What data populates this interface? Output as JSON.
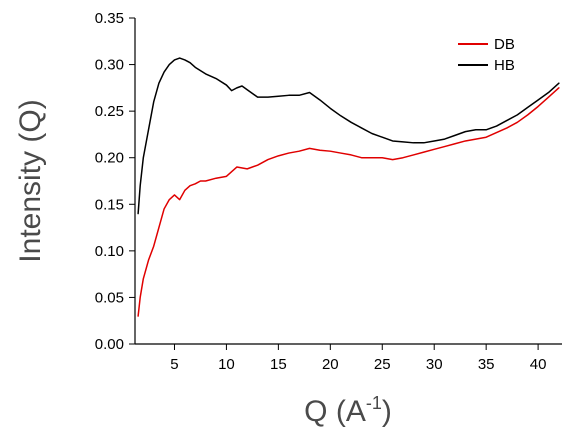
{
  "chart_data": {
    "type": "line",
    "title": "",
    "xlabel": "Q (A",
    "xlabel_superscript": "-1",
    "xlabel_suffix": ")",
    "ylabel": "Intensity (Q)",
    "xlim": [
      1.2,
      42.3
    ],
    "ylim": [
      0,
      0.35
    ],
    "xticks": [
      5,
      10,
      15,
      20,
      25,
      30,
      35,
      40
    ],
    "yticks": [
      0.0,
      0.05,
      0.1,
      0.15,
      0.2,
      0.25,
      0.3,
      0.35
    ],
    "ytick_labels": [
      "0.00",
      "0.05",
      "0.10",
      "0.15",
      "0.20",
      "0.25",
      "0.30",
      "0.35"
    ],
    "grid": false,
    "legend_position": "top-right",
    "series": [
      {
        "name": "DB",
        "color": "#e00000",
        "x": [
          1.5,
          1.7,
          2.0,
          2.5,
          3.0,
          3.5,
          4.0,
          4.5,
          5.0,
          5.5,
          6.0,
          6.5,
          7.0,
          7.5,
          8.0,
          9.0,
          10.0,
          11.0,
          12.0,
          13.0,
          14.0,
          15.0,
          16.0,
          17.0,
          18.0,
          19.0,
          20.0,
          21.0,
          22.0,
          23.0,
          24.0,
          25.0,
          26.0,
          27.0,
          28.0,
          29.0,
          30.0,
          31.0,
          32.0,
          33.0,
          34.0,
          35.0,
          36.0,
          37.0,
          38.0,
          39.0,
          40.0,
          41.0,
          42.0
        ],
        "y": [
          0.03,
          0.05,
          0.07,
          0.09,
          0.105,
          0.125,
          0.145,
          0.155,
          0.16,
          0.155,
          0.165,
          0.17,
          0.172,
          0.175,
          0.175,
          0.178,
          0.18,
          0.19,
          0.188,
          0.192,
          0.198,
          0.202,
          0.205,
          0.207,
          0.21,
          0.208,
          0.207,
          0.205,
          0.203,
          0.2,
          0.2,
          0.2,
          0.198,
          0.2,
          0.203,
          0.206,
          0.209,
          0.212,
          0.215,
          0.218,
          0.22,
          0.222,
          0.227,
          0.232,
          0.238,
          0.246,
          0.255,
          0.265,
          0.275
        ]
      },
      {
        "name": "HB",
        "color": "#000000",
        "x": [
          1.5,
          1.7,
          2.0,
          2.5,
          3.0,
          3.5,
          4.0,
          4.5,
          5.0,
          5.5,
          6.0,
          6.5,
          7.0,
          8.0,
          9.0,
          10.0,
          10.5,
          11.0,
          11.5,
          12.0,
          13.0,
          14.0,
          15.0,
          16.0,
          17.0,
          18.0,
          19.0,
          20.0,
          21.0,
          22.0,
          23.0,
          24.0,
          25.0,
          26.0,
          27.0,
          28.0,
          29.0,
          30.0,
          31.0,
          32.0,
          33.0,
          34.0,
          35.0,
          36.0,
          37.0,
          38.0,
          39.0,
          40.0,
          41.0,
          42.0
        ],
        "y": [
          0.14,
          0.17,
          0.2,
          0.23,
          0.26,
          0.28,
          0.292,
          0.3,
          0.305,
          0.307,
          0.305,
          0.302,
          0.297,
          0.29,
          0.285,
          0.278,
          0.272,
          0.275,
          0.277,
          0.273,
          0.265,
          0.265,
          0.266,
          0.267,
          0.267,
          0.27,
          0.262,
          0.253,
          0.245,
          0.238,
          0.232,
          0.226,
          0.222,
          0.218,
          0.217,
          0.216,
          0.216,
          0.218,
          0.22,
          0.224,
          0.228,
          0.23,
          0.23,
          0.234,
          0.24,
          0.246,
          0.254,
          0.262,
          0.27,
          0.28
        ]
      }
    ]
  }
}
